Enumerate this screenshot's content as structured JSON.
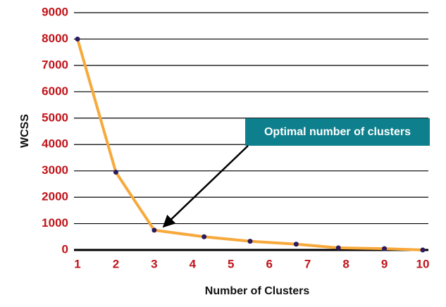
{
  "chart_data": {
    "type": "line",
    "x_label": "Number of Clusters",
    "y_label": "WCSS",
    "annotation": "Optimal number of clusters",
    "x": [
      1,
      2,
      3,
      4.3,
      5.5,
      6.7,
      7.8,
      9,
      10
    ],
    "series": [
      {
        "color": "#f7a93b",
        "marker_color": "#2a1a5e",
        "values": [
          8000,
          2950,
          750,
          500,
          330,
          220,
          80,
          50,
          0
        ]
      }
    ],
    "xlim": [
      1,
      10
    ],
    "xticks": [
      1,
      2,
      3,
      4,
      5,
      6,
      7,
      8,
      9,
      10
    ],
    "ylim": [
      0,
      9000
    ],
    "yticks": [
      0,
      1000,
      2000,
      3000,
      4000,
      5000,
      6000,
      7000,
      8000,
      9000
    ],
    "grid": true
  }
}
